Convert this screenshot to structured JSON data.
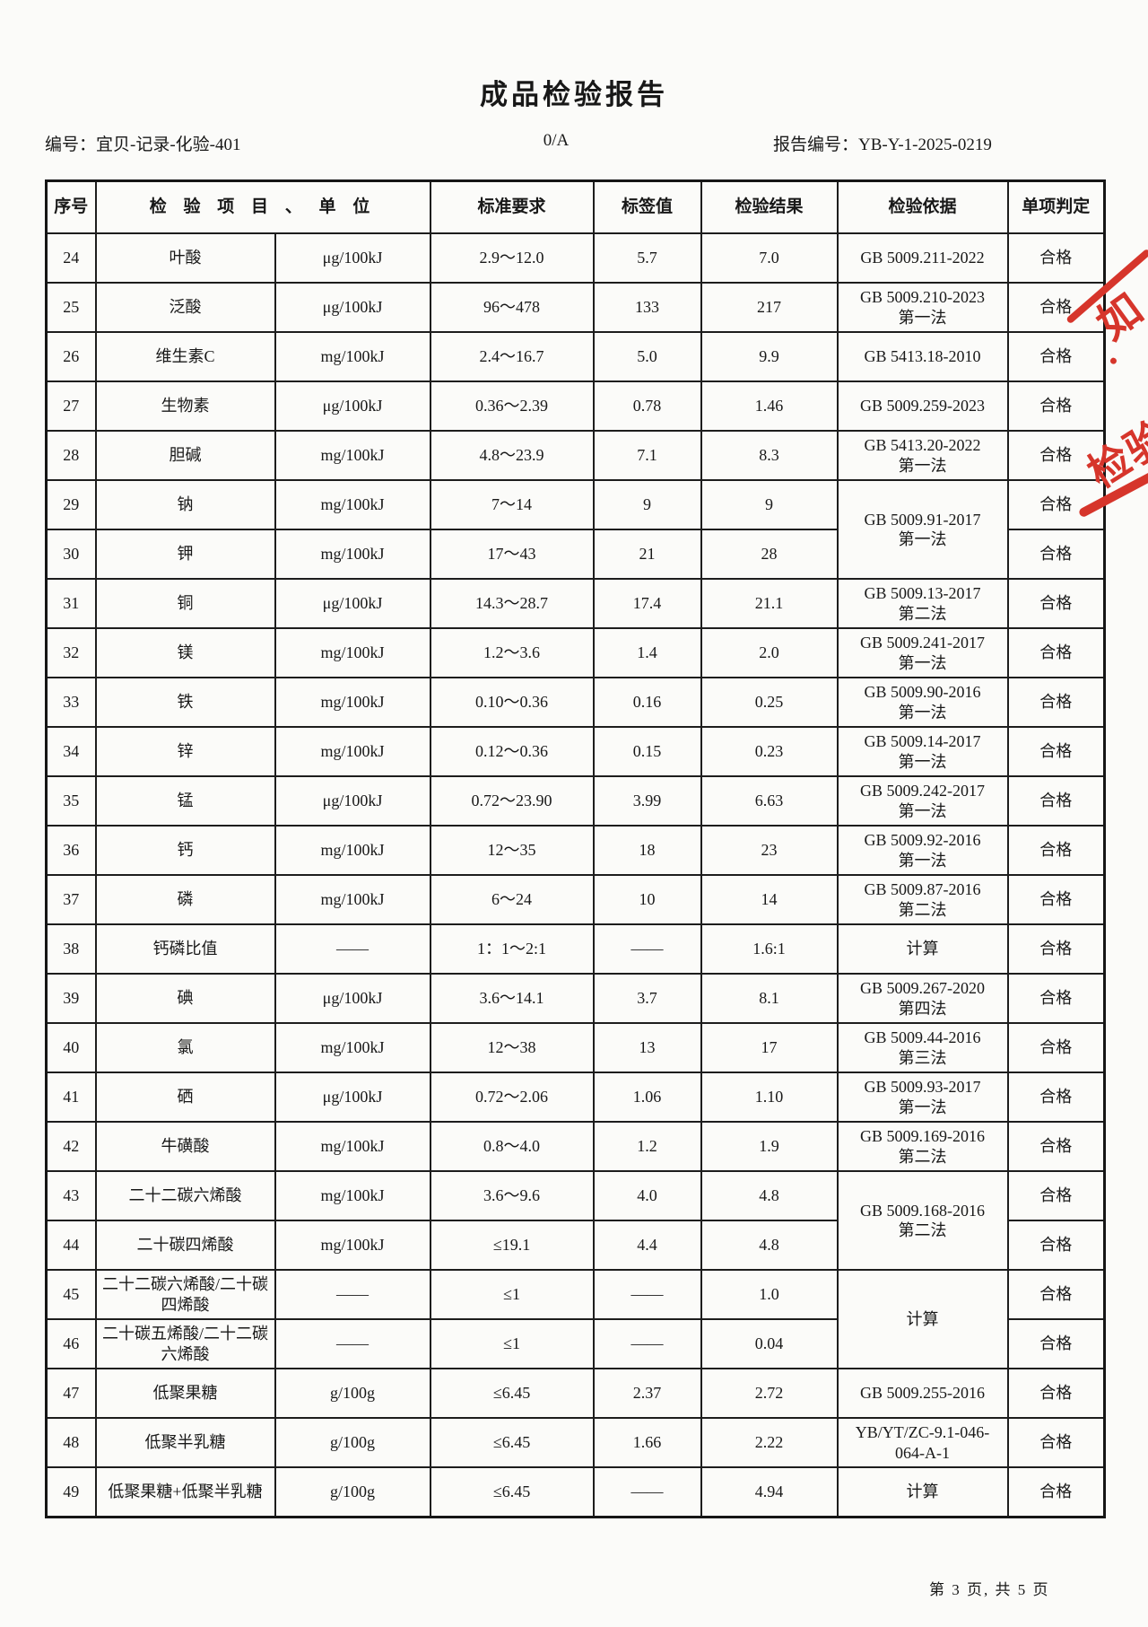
{
  "title": "成品检验报告",
  "meta": {
    "doc_no": "编号：宜贝-记录-化验-401",
    "version": "0/A",
    "report_no": "报告编号：YB-Y-1-2025-0219"
  },
  "table": {
    "headers": {
      "no": "序号",
      "item_unit": "检 验 项 目 、 单 位",
      "standard": "标准要求",
      "label_value": "标签值",
      "result": "检验结果",
      "basis": "检验依据",
      "judgment": "单项判定"
    },
    "rows": [
      {
        "no": "24",
        "item": "叶酸",
        "unit": "μg/100kJ",
        "standard": "2.9～12.0",
        "label": "5.7",
        "result": "7.0",
        "basis": "GB 5009.211-2022",
        "basis2": "",
        "basis_span": 1,
        "judgment": "合格"
      },
      {
        "no": "25",
        "item": "泛酸",
        "unit": "μg/100kJ",
        "standard": "96～478",
        "label": "133",
        "result": "217",
        "basis": "GB 5009.210-2023",
        "basis2": "第一法",
        "basis_span": 1,
        "judgment": "合格"
      },
      {
        "no": "26",
        "item": "维生素C",
        "unit": "mg/100kJ",
        "standard": "2.4～16.7",
        "label": "5.0",
        "result": "9.9",
        "basis": "GB 5413.18-2010",
        "basis2": "",
        "basis_span": 1,
        "judgment": "合格"
      },
      {
        "no": "27",
        "item": "生物素",
        "unit": "μg/100kJ",
        "standard": "0.36～2.39",
        "label": "0.78",
        "result": "1.46",
        "basis": "GB 5009.259-2023",
        "basis2": "",
        "basis_span": 1,
        "judgment": "合格"
      },
      {
        "no": "28",
        "item": "胆碱",
        "unit": "mg/100kJ",
        "standard": "4.8～23.9",
        "label": "7.1",
        "result": "8.3",
        "basis": "GB 5413.20-2022",
        "basis2": "第一法",
        "basis_span": 1,
        "judgment": "合格"
      },
      {
        "no": "29",
        "item": "钠",
        "unit": "mg/100kJ",
        "standard": "7～14",
        "label": "9",
        "result": "9",
        "basis": "GB 5009.91-2017",
        "basis2": "第一法",
        "basis_span": 2,
        "judgment": "合格"
      },
      {
        "no": "30",
        "item": "钾",
        "unit": "mg/100kJ",
        "standard": "17～43",
        "label": "21",
        "result": "28",
        "basis": null,
        "basis2": "",
        "basis_span": 0,
        "judgment": "合格"
      },
      {
        "no": "31",
        "item": "铜",
        "unit": "μg/100kJ",
        "standard": "14.3～28.7",
        "label": "17.4",
        "result": "21.1",
        "basis": "GB 5009.13-2017",
        "basis2": "第二法",
        "basis_span": 1,
        "judgment": "合格"
      },
      {
        "no": "32",
        "item": "镁",
        "unit": "mg/100kJ",
        "standard": "1.2～3.6",
        "label": "1.4",
        "result": "2.0",
        "basis": "GB 5009.241-2017",
        "basis2": "第一法",
        "basis_span": 1,
        "judgment": "合格"
      },
      {
        "no": "33",
        "item": "铁",
        "unit": "mg/100kJ",
        "standard": "0.10～0.36",
        "label": "0.16",
        "result": "0.25",
        "basis": "GB 5009.90-2016",
        "basis2": "第一法",
        "basis_span": 1,
        "judgment": "合格"
      },
      {
        "no": "34",
        "item": "锌",
        "unit": "mg/100kJ",
        "standard": "0.12～0.36",
        "label": "0.15",
        "result": "0.23",
        "basis": "GB 5009.14-2017",
        "basis2": "第一法",
        "basis_span": 1,
        "judgment": "合格"
      },
      {
        "no": "35",
        "item": "锰",
        "unit": "μg/100kJ",
        "standard": "0.72～23.90",
        "label": "3.99",
        "result": "6.63",
        "basis": "GB 5009.242-2017",
        "basis2": "第一法",
        "basis_span": 1,
        "judgment": "合格"
      },
      {
        "no": "36",
        "item": "钙",
        "unit": "mg/100kJ",
        "standard": "12～35",
        "label": "18",
        "result": "23",
        "basis": "GB 5009.92-2016",
        "basis2": "第一法",
        "basis_span": 1,
        "judgment": "合格"
      },
      {
        "no": "37",
        "item": "磷",
        "unit": "mg/100kJ",
        "standard": "6～24",
        "label": "10",
        "result": "14",
        "basis": "GB 5009.87-2016",
        "basis2": "第二法",
        "basis_span": 1,
        "judgment": "合格"
      },
      {
        "no": "38",
        "item": "钙磷比值",
        "unit": "——",
        "standard": "1：1～2:1",
        "label": "——",
        "result": "1.6:1",
        "basis": "计算",
        "basis2": "",
        "basis_span": 1,
        "judgment": "合格"
      },
      {
        "no": "39",
        "item": "碘",
        "unit": "μg/100kJ",
        "standard": "3.6～14.1",
        "label": "3.7",
        "result": "8.1",
        "basis": "GB 5009.267-2020",
        "basis2": "第四法",
        "basis_span": 1,
        "judgment": "合格"
      },
      {
        "no": "40",
        "item": "氯",
        "unit": "mg/100kJ",
        "standard": "12～38",
        "label": "13",
        "result": "17",
        "basis": "GB 5009.44-2016",
        "basis2": "第三法",
        "basis_span": 1,
        "judgment": "合格"
      },
      {
        "no": "41",
        "item": "硒",
        "unit": "μg/100kJ",
        "standard": "0.72～2.06",
        "label": "1.06",
        "result": "1.10",
        "basis": "GB 5009.93-2017",
        "basis2": "第一法",
        "basis_span": 1,
        "judgment": "合格"
      },
      {
        "no": "42",
        "item": "牛磺酸",
        "unit": "mg/100kJ",
        "standard": "0.8～4.0",
        "label": "1.2",
        "result": "1.9",
        "basis": "GB 5009.169-2016",
        "basis2": "第二法",
        "basis_span": 1,
        "judgment": "合格"
      },
      {
        "no": "43",
        "item": "二十二碳六烯酸",
        "unit": "mg/100kJ",
        "standard": "3.6～9.6",
        "label": "4.0",
        "result": "4.8",
        "basis": "GB 5009.168-2016",
        "basis2": "第二法",
        "basis_span": 2,
        "judgment": "合格"
      },
      {
        "no": "44",
        "item": "二十碳四烯酸",
        "unit": "mg/100kJ",
        "standard": "≤19.1",
        "label": "4.4",
        "result": "4.8",
        "basis": null,
        "basis2": "",
        "basis_span": 0,
        "judgment": "合格"
      },
      {
        "no": "45",
        "item": "二十二碳六烯酸/二十碳四烯酸",
        "unit": "——",
        "standard": "≤1",
        "label": "——",
        "result": "1.0",
        "basis": "计算",
        "basis2": "",
        "basis_span": 2,
        "judgment": "合格"
      },
      {
        "no": "46",
        "item": "二十碳五烯酸/二十二碳六烯酸",
        "unit": "——",
        "standard": "≤1",
        "label": "——",
        "result": "0.04",
        "basis": null,
        "basis2": "",
        "basis_span": 0,
        "judgment": "合格"
      },
      {
        "no": "47",
        "item": "低聚果糖",
        "unit": "g/100g",
        "standard": "≤6.45",
        "label": "2.37",
        "result": "2.72",
        "basis": "GB 5009.255-2016",
        "basis2": "",
        "basis_span": 1,
        "judgment": "合格"
      },
      {
        "no": "48",
        "item": "低聚半乳糖",
        "unit": "g/100g",
        "standard": "≤6.45",
        "label": "1.66",
        "result": "2.22",
        "basis": "YB/YT/ZC-9.1-046-",
        "basis2": "064-A-1",
        "basis_span": 1,
        "judgment": "合格"
      },
      {
        "no": "49",
        "item": "低聚果糖+低聚半乳糖",
        "unit": "g/100g",
        "standard": "≤6.45",
        "label": "——",
        "result": "4.94",
        "basis": "计算",
        "basis2": "",
        "basis_span": 1,
        "judgment": "合格"
      }
    ]
  },
  "footer": {
    "page_info": "第 3 页, 共 5 页"
  },
  "stamps": {
    "fragment1": "如",
    "fragment2": "检验"
  },
  "colors": {
    "stamp_red": "#d6352b",
    "ink": "#181818"
  }
}
